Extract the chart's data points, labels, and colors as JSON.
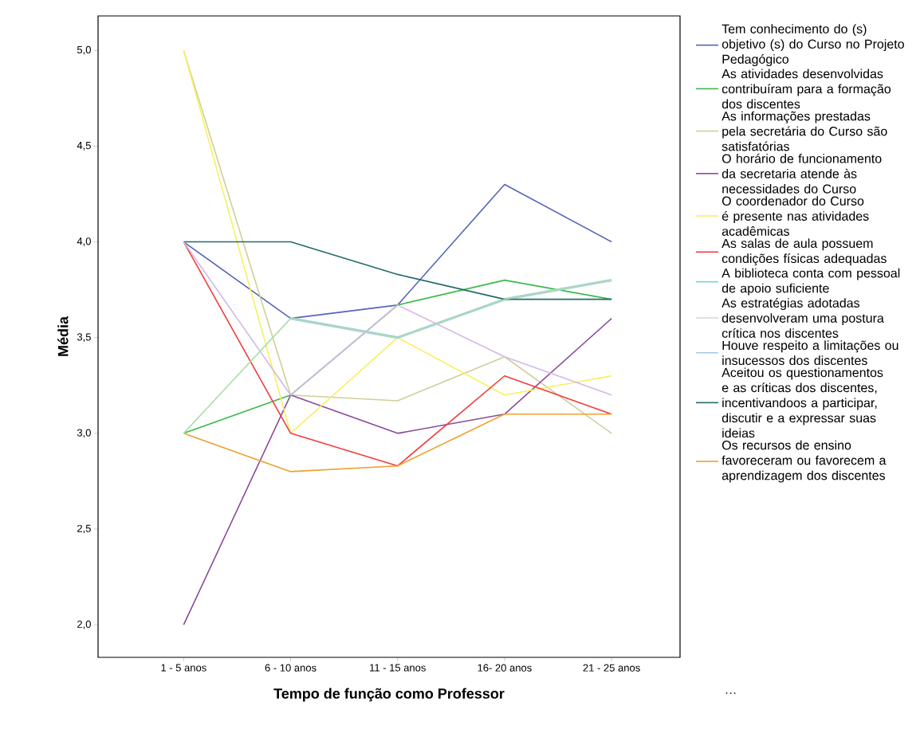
{
  "chart_data": {
    "type": "line",
    "xlabel": "Tempo de função como Professor",
    "ylabel": "Média",
    "categories": [
      "1 - 5 anos",
      "6 - 10 anos",
      "11 - 15 anos",
      "16- 20 anos",
      "21 - 25 anos"
    ],
    "ylim": [
      1.83,
      5.18
    ],
    "yticks": [
      {
        "value": 2.0,
        "label": "2,0"
      },
      {
        "value": 2.5,
        "label": "2,5"
      },
      {
        "value": 3.0,
        "label": "3,0"
      },
      {
        "value": 3.5,
        "label": "3,5"
      },
      {
        "value": 4.0,
        "label": "4,0"
      },
      {
        "value": 4.5,
        "label": "4,5"
      },
      {
        "value": 5.0,
        "label": "5,0"
      }
    ],
    "legend": "right",
    "marker": "none",
    "line_style": "solid",
    "grid": false,
    "annotations": [
      "…"
    ],
    "series": [
      {
        "name": "Tem conhecimento do (s) objetivo (s) do Curso no Projeto Pedagógico",
        "color": "#5565b8",
        "values": [
          4.0,
          3.6,
          3.67,
          4.3,
          4.0
        ]
      },
      {
        "name": "As atividades desenvolvidas contribuíram para a formação dos discentes",
        "color": "#3cb94c",
        "values": [
          3.0,
          3.2,
          3.67,
          3.8,
          3.7
        ]
      },
      {
        "name": "As informações prestadas pela secretária do Curso são satisfatórias",
        "color": "#cfcf9a",
        "values": [
          5.0,
          3.2,
          3.17,
          3.4,
          3.0
        ]
      },
      {
        "name": "O horário de funcionamento da secretaria atende às necessidades do Curso",
        "color": "#8a4a9a",
        "values": [
          2.0,
          3.2,
          3.0,
          3.1,
          3.6
        ]
      },
      {
        "name": "O coordenador do Curso é presente nas atividades acadêmicas",
        "color": "#f8f060",
        "values": [
          5.0,
          3.0,
          3.5,
          3.2,
          3.3
        ]
      },
      {
        "name": "As salas de aula possuem condições físicas adequadas",
        "color": "#f23c3c",
        "values": [
          4.0,
          3.0,
          2.83,
          3.3,
          3.1
        ]
      },
      {
        "name": "A biblioteca conta com pessoal de apoio suficiente",
        "color": "#6ed6d0",
        "values": [
          null,
          null,
          null,
          null,
          null
        ]
      },
      {
        "name": "As estratégias adotadas desenvolveram uma postura crítica nos discentes",
        "color": "#d8d8d8",
        "values": [
          null,
          null,
          null,
          null,
          null
        ]
      },
      {
        "name": "Houve respeito a limitações ou insucessos dos discentes",
        "color": "#a8c8ea",
        "values": [
          null,
          3.6,
          3.5,
          3.7,
          3.8
        ]
      },
      {
        "name": "Aceitou os questionamentos e as críticas dos discentes, incentivandoos a participar, discutir e a expressar suas ideias",
        "color": "#236a6a",
        "values": [
          4.0,
          4.0,
          3.83,
          3.7,
          3.7
        ]
      },
      {
        "name": "Os recursos de ensino favoreceram ou favorecem a aprendizagem dos discentes",
        "color": "#f0a030",
        "values": [
          3.0,
          2.8,
          2.83,
          3.1,
          3.1
        ]
      },
      {
        "color": "#d4b8e8",
        "values": [
          4.0,
          3.2,
          3.67,
          3.4,
          3.2
        ]
      },
      {
        "color": "#a8e0a8",
        "values": [
          3.0,
          3.6,
          3.5,
          3.7,
          3.8
        ]
      }
    ]
  }
}
